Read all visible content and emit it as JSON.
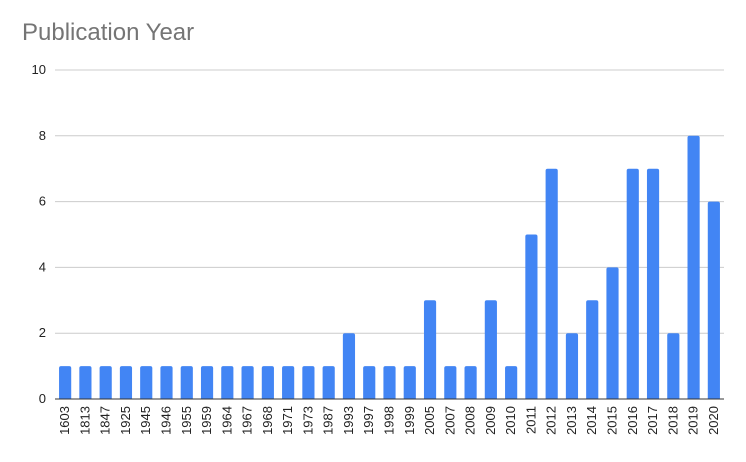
{
  "chart_data": {
    "type": "bar",
    "title": "Publication Year",
    "xlabel": "",
    "ylabel": "",
    "ylim": [
      0,
      10
    ],
    "yticks": [
      0,
      2,
      4,
      6,
      8,
      10
    ],
    "grid": true,
    "legend": "none",
    "bar_color": "#4285f4",
    "categories": [
      "1603",
      "1813",
      "1847",
      "1925",
      "1945",
      "1946",
      "1955",
      "1959",
      "1964",
      "1967",
      "1968",
      "1971",
      "1973",
      "1987",
      "1993",
      "1997",
      "1998",
      "1999",
      "2005",
      "2007",
      "2008",
      "2009",
      "2010",
      "2011",
      "2012",
      "2013",
      "2014",
      "2015",
      "2016",
      "2017",
      "2018",
      "2019",
      "2020"
    ],
    "series": [
      {
        "values": [
          1,
          1,
          1,
          1,
          1,
          1,
          1,
          1,
          1,
          1,
          1,
          1,
          1,
          1,
          2,
          1,
          1,
          1,
          3,
          1,
          1,
          3,
          1,
          5,
          7,
          2,
          3,
          4,
          7,
          7,
          2,
          8,
          6
        ]
      }
    ]
  }
}
